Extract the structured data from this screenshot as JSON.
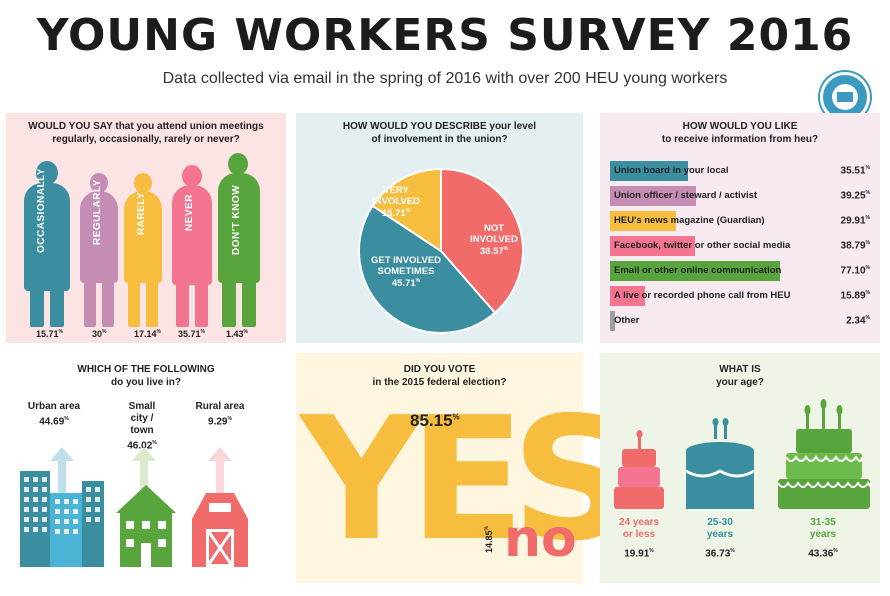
{
  "header": {
    "title": "YOUNG WORKERS SURVEY 2016",
    "subtitle": "Data collected via email in the spring of 2016 with over 200 HEU young workers",
    "seal_text": "HOSPITAL EMPLOYEES' UNION CUPE"
  },
  "colors": {
    "teal": "#3a8ea0",
    "mauve": "#c58db4",
    "yellow": "#f7bd3f",
    "pink": "#f3758f",
    "green": "#59a53d",
    "coral": "#f06b6a",
    "sky": "#4ab3d6"
  },
  "meetings": {
    "title_lead": "WOULD YOU SAY",
    "title_rest": "that you attend union meetings regularly, occasionally, rarely or never?",
    "items": [
      {
        "label": "OCCASIONALLY",
        "value": "15.71",
        "unit": "%",
        "fraction": 0.1571
      },
      {
        "label": "REGULARLY",
        "value": "30",
        "unit": "%",
        "fraction": 0.3
      },
      {
        "label": "RARELY",
        "value": "17.14",
        "unit": "%",
        "fraction": 0.1714
      },
      {
        "label": "NEVER",
        "value": "35.71",
        "unit": "%",
        "fraction": 0.3571
      },
      {
        "label": "DON'T KNOW",
        "value": "1.43",
        "unit": "%",
        "fraction": 0.0143
      }
    ]
  },
  "involvement": {
    "title_line1": "HOW WOULD YOU DESCRIBE your level",
    "title_line2": "of involvement in the union?",
    "chart_data": {
      "type": "pie",
      "slices": [
        {
          "name": "NOT INVOLVED",
          "value": 38.57,
          "label": "38.57",
          "unit": "%"
        },
        {
          "name": "GET INVOLVED SOMETIMES",
          "value": 45.71,
          "label": "45.71",
          "unit": "%"
        },
        {
          "name": "VERY INVOLVED",
          "value": 15.71,
          "label": "15.71",
          "unit": "%"
        }
      ],
      "display": {
        "not_involved": [
          "NOT",
          "INVOLVED"
        ],
        "sometimes": [
          "GET INVOLVED",
          "SOMETIMES"
        ],
        "very": [
          "VERY",
          "INVOLVED"
        ]
      }
    }
  },
  "info": {
    "title_line1": "HOW WOULD YOU LIKE",
    "title_line2": "to receive information from heu?",
    "chart_data": {
      "type": "bar",
      "categories": [
        "Union board in your local",
        "Union officer / steward / activist",
        "HEU's news magazine (Guardian)",
        "Facebook, twitter or other social media",
        "Email or other online communication",
        "A live or recorded phone call from HEU",
        "Other"
      ],
      "values": [
        35.51,
        39.25,
        29.91,
        38.79,
        77.1,
        15.89,
        2.34
      ],
      "labels": [
        "35.51",
        "39.25",
        "29.91",
        "38.79",
        "77.10",
        "15.89",
        "2.34"
      ],
      "unit": "%"
    }
  },
  "living": {
    "title_line1": "WHICH OF THE FOLLOWING",
    "title_line2": "do you live in?",
    "items": [
      {
        "label": "Urban area",
        "value": "44.69",
        "unit": "%"
      },
      {
        "label": "Small city / town",
        "value": "46.02",
        "unit": "%"
      },
      {
        "label": "Rural area",
        "value": "9.29",
        "unit": "%"
      }
    ]
  },
  "vote": {
    "title_line1": "DID YOU VOTE",
    "title_line2": "in the 2015 federal election?",
    "yes_word": "YES",
    "yes_value": "85.15",
    "no_word": "no",
    "no_value": "14.85",
    "unit": "%"
  },
  "age": {
    "title_line1": "WHAT IS",
    "title_line2": "your age?",
    "items": [
      {
        "label_l1": "24 years",
        "label_l2": "or less",
        "value": "19.91",
        "unit": "%"
      },
      {
        "label_l1": "25-30",
        "label_l2": "years",
        "value": "36.73",
        "unit": "%"
      },
      {
        "label_l1": "31-35",
        "label_l2": "years",
        "value": "43.36",
        "unit": "%"
      }
    ]
  }
}
